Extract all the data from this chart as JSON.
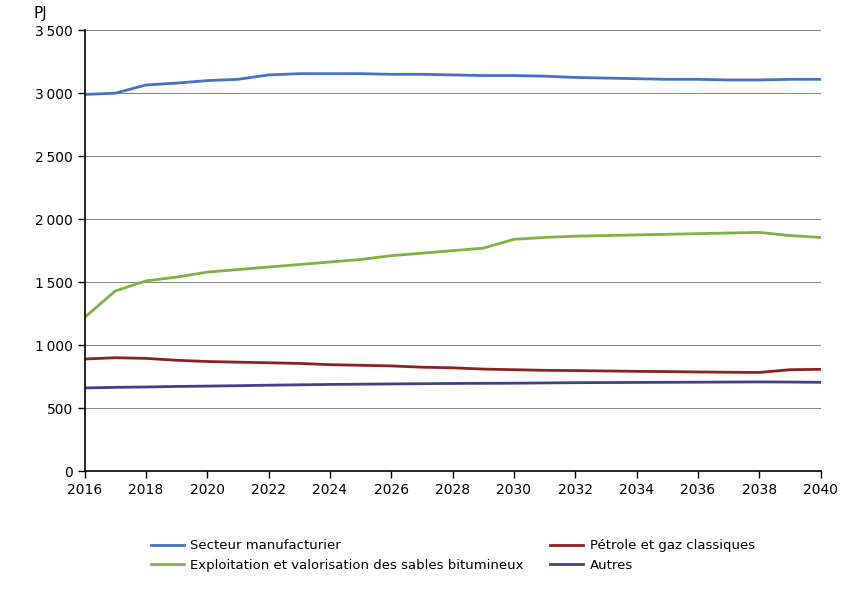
{
  "years": [
    2016,
    2017,
    2018,
    2019,
    2020,
    2021,
    2022,
    2023,
    2024,
    2025,
    2026,
    2027,
    2028,
    2029,
    2030,
    2031,
    2032,
    2033,
    2034,
    2035,
    2036,
    2037,
    2038,
    2039,
    2040
  ],
  "secteur_manufacturier": [
    2990,
    3000,
    3065,
    3080,
    3100,
    3110,
    3145,
    3155,
    3155,
    3155,
    3150,
    3150,
    3145,
    3140,
    3140,
    3135,
    3125,
    3120,
    3115,
    3110,
    3110,
    3105,
    3105,
    3110,
    3110
  ],
  "sables_bitumineux": [
    1220,
    1430,
    1510,
    1540,
    1580,
    1600,
    1620,
    1640,
    1660,
    1680,
    1710,
    1730,
    1750,
    1770,
    1840,
    1855,
    1865,
    1870,
    1875,
    1880,
    1885,
    1890,
    1895,
    1870,
    1855
  ],
  "petrole_gaz": [
    890,
    900,
    895,
    880,
    870,
    865,
    860,
    855,
    845,
    840,
    835,
    825,
    820,
    810,
    805,
    800,
    798,
    795,
    792,
    790,
    787,
    785,
    783,
    805,
    808
  ],
  "autres": [
    660,
    665,
    668,
    672,
    675,
    678,
    682,
    685,
    688,
    690,
    692,
    694,
    696,
    697,
    698,
    700,
    702,
    703,
    704,
    705,
    706,
    707,
    708,
    707,
    705
  ],
  "colors": {
    "secteur_manufacturier": "#4472C4",
    "sables_bitumineux": "#7CB342",
    "petrole_gaz": "#8B2222",
    "autres": "#483D8B"
  },
  "ylabel": "PJ",
  "ylim": [
    0,
    3500
  ],
  "yticks": [
    0,
    500,
    1000,
    1500,
    2000,
    2500,
    3000,
    3500
  ],
  "xticks": [
    2016,
    2018,
    2020,
    2022,
    2024,
    2026,
    2028,
    2030,
    2032,
    2034,
    2036,
    2038,
    2040
  ],
  "legend": [
    {
      "label": "Secteur manufacturier",
      "color": "#4472C4"
    },
    {
      "label": "Exploitation et valorisation des sables bitumineux",
      "color": "#7CB342"
    },
    {
      "label": "Pétrole et gaz classiques",
      "color": "#8B2222"
    },
    {
      "label": "Autres",
      "color": "#483D8B"
    }
  ],
  "background_color": "#FFFFFF",
  "grid_color": "#808080",
  "linewidth": 2.0,
  "spine_color": "#000000"
}
